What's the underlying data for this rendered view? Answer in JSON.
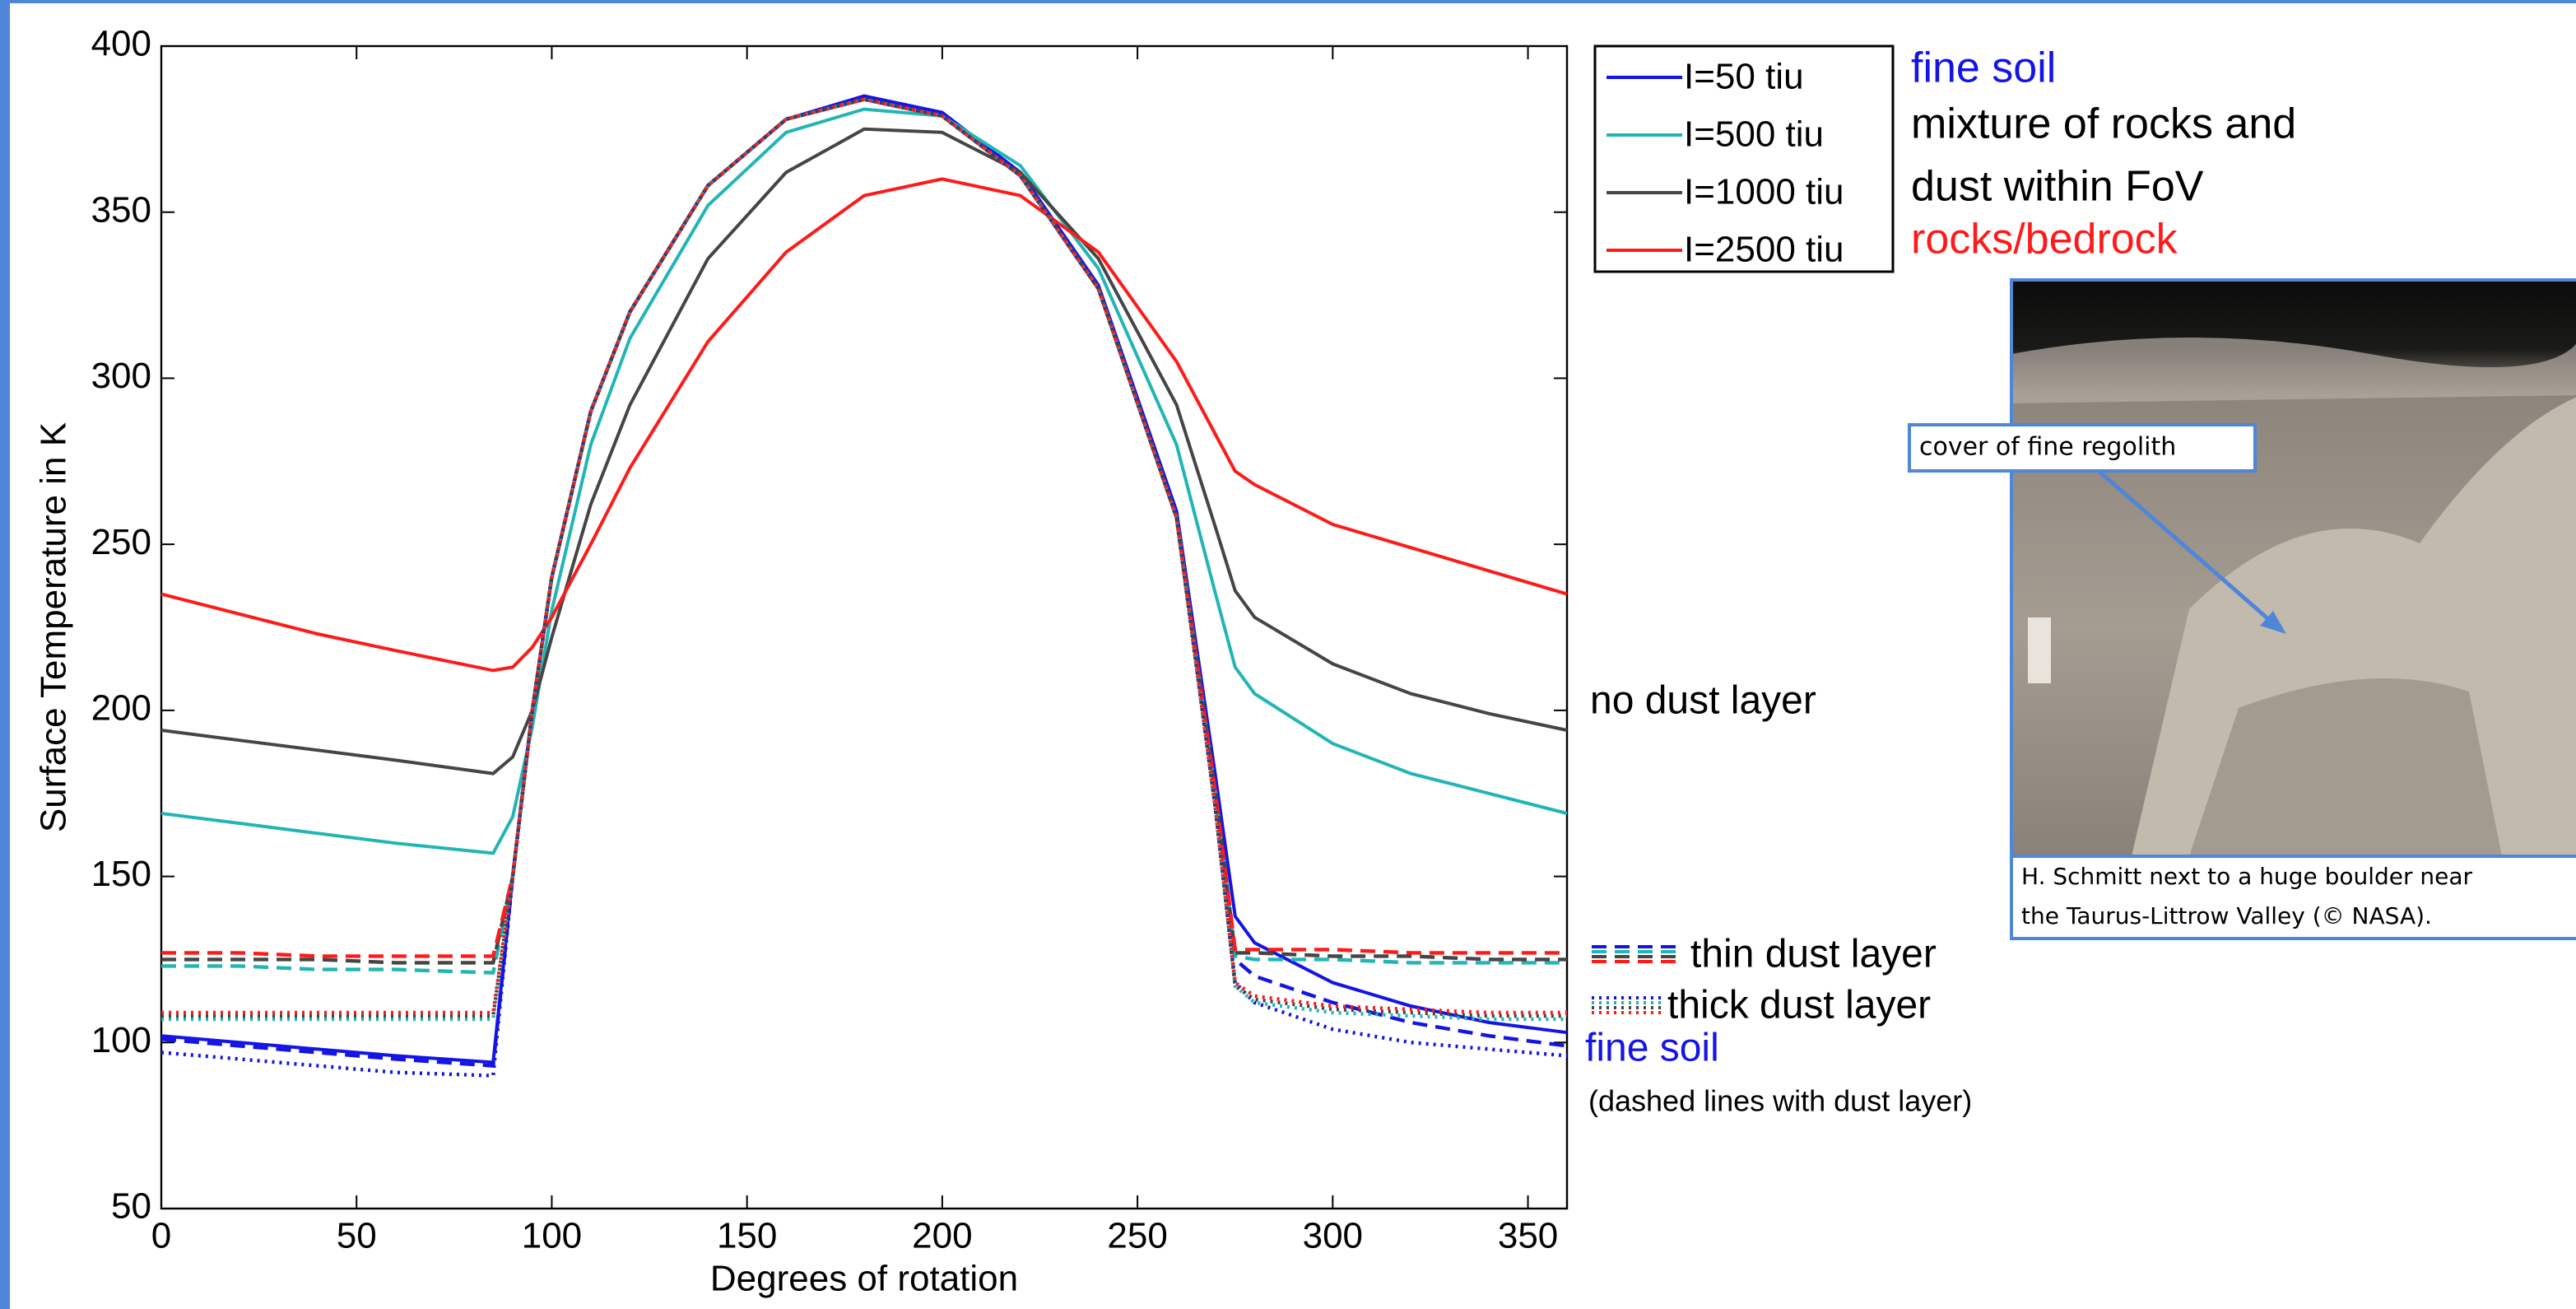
{
  "chart_data": {
    "type": "line",
    "xlabel": "Degrees of rotation",
    "ylabel": "Surface Temperature in K",
    "x": [
      0,
      20,
      40,
      60,
      85,
      90,
      95,
      100,
      110,
      120,
      140,
      160,
      180,
      200,
      220,
      240,
      260,
      270,
      275,
      280,
      300,
      320,
      340,
      360
    ],
    "xlim": [
      0,
      360
    ],
    "xticks": [
      0,
      50,
      100,
      150,
      200,
      250,
      300,
      350
    ],
    "ylim": [
      50,
      400
    ],
    "yticks": [
      50,
      100,
      150,
      200,
      250,
      300,
      350,
      400
    ],
    "legend": "top-right",
    "series": [
      {
        "name": "I=50 tiu",
        "color": "#1414e6",
        "dash": "solid",
        "values": [
          102,
          100,
          98,
          96,
          94,
          150,
          200,
          240,
          290,
          320,
          358,
          378,
          385,
          380,
          362,
          328,
          260,
          180,
          138,
          130,
          118,
          111,
          106,
          103
        ]
      },
      {
        "name": "I=500 tiu",
        "color": "#22b5b5",
        "dash": "solid",
        "values": [
          169,
          166,
          163,
          160,
          157,
          168,
          195,
          230,
          280,
          312,
          352,
          374,
          381,
          379,
          364,
          333,
          280,
          235,
          213,
          205,
          190,
          181,
          175,
          169
        ]
      },
      {
        "name": "I=1000 tiu",
        "color": "#454545",
        "dash": "solid",
        "values": [
          194,
          191,
          188,
          185,
          181,
          186,
          200,
          222,
          262,
          292,
          336,
          362,
          375,
          374,
          362,
          336,
          292,
          255,
          236,
          228,
          214,
          205,
          199,
          194
        ]
      },
      {
        "name": "I=2500 tiu",
        "color": "#ff1a1a",
        "dash": "solid",
        "values": [
          235,
          229,
          223,
          218,
          212,
          213,
          219,
          228,
          250,
          273,
          311,
          338,
          355,
          360,
          355,
          338,
          305,
          283,
          272,
          268,
          256,
          249,
          242,
          235
        ]
      },
      {
        "color": "#1414e6",
        "dash": "dashed",
        "values": [
          101,
          99,
          97,
          95,
          93,
          150,
          200,
          240,
          290,
          320,
          358,
          378,
          384,
          379,
          361,
          327,
          258,
          175,
          125,
          120,
          112,
          106,
          102,
          99
        ]
      },
      {
        "color": "#22b5b5",
        "dash": "dashed",
        "values": [
          123,
          123,
          122,
          122,
          121,
          150,
          200,
          240,
          290,
          320,
          358,
          378,
          384,
          379,
          361,
          327,
          258,
          175,
          126,
          125,
          125,
          124,
          124,
          124
        ]
      },
      {
        "color": "#454545",
        "dash": "dashed",
        "values": [
          125,
          125,
          125,
          124,
          124,
          150,
          200,
          240,
          290,
          320,
          358,
          378,
          384,
          379,
          361,
          327,
          258,
          175,
          127,
          127,
          126,
          126,
          125,
          125
        ]
      },
      {
        "color": "#ff1a1a",
        "dash": "dashed",
        "values": [
          127,
          127,
          126,
          126,
          126,
          150,
          200,
          240,
          290,
          320,
          358,
          378,
          384,
          379,
          361,
          327,
          258,
          175,
          128,
          128,
          128,
          127,
          127,
          127
        ]
      },
      {
        "color": "#1414e6",
        "dash": "dotted",
        "values": [
          97,
          95,
          93,
          91,
          90,
          150,
          200,
          240,
          290,
          320,
          358,
          378,
          384,
          379,
          361,
          327,
          258,
          170,
          118,
          112,
          104,
          100,
          98,
          96
        ]
      },
      {
        "color": "#22b5b5",
        "dash": "dotted",
        "values": [
          107,
          107,
          107,
          107,
          107,
          150,
          200,
          240,
          290,
          320,
          358,
          378,
          384,
          379,
          361,
          327,
          258,
          170,
          117,
          112,
          109,
          108,
          107,
          107
        ]
      },
      {
        "color": "#454545",
        "dash": "dotted",
        "values": [
          108,
          108,
          108,
          108,
          108,
          150,
          200,
          240,
          290,
          320,
          358,
          378,
          384,
          379,
          361,
          327,
          258,
          170,
          117,
          113,
          110,
          109,
          108,
          108
        ]
      },
      {
        "color": "#ff1a1a",
        "dash": "dotted",
        "values": [
          109,
          109,
          109,
          109,
          109,
          150,
          200,
          240,
          290,
          320,
          358,
          378,
          384,
          379,
          361,
          327,
          258,
          170,
          118,
          114,
          111,
          110,
          109,
          109
        ]
      }
    ]
  },
  "legend_notes": [
    {
      "text": "fine soil",
      "color": "#1414e6"
    },
    {
      "text": "mixture of rocks and",
      "color": "#000000"
    },
    {
      "text": "dust within FoV",
      "color": "#000000"
    },
    {
      "text": "rocks/bedrock",
      "color": "#ff1a1a"
    }
  ],
  "annotations": {
    "no_dust": "no dust layer",
    "thin_dust": "thin dust layer",
    "thick_dust": "thick dust layer",
    "fine_soil": "fine soil",
    "note": "(dashed lines with dust layer)"
  },
  "photo": {
    "callout": "cover of fine regolith",
    "caption": [
      "H. Schmitt next to a huge boulder near",
      "the Taurus-Littrow Valley (© NASA)."
    ]
  }
}
